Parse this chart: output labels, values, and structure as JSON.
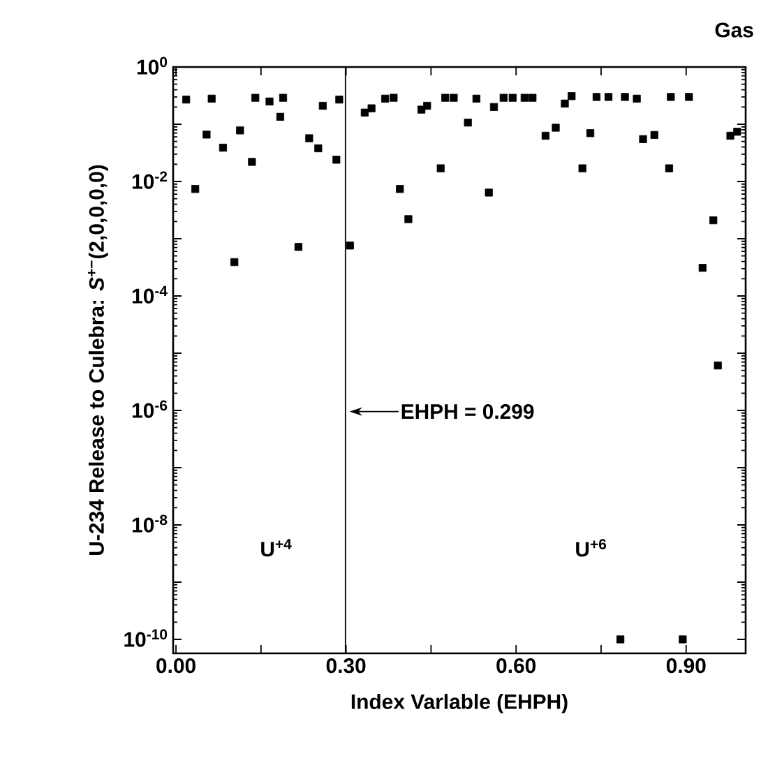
{
  "chart_data": {
    "type": "scatter",
    "title": "Gas",
    "xlabel": "Index Varlable (EHPH)",
    "ylabel": "U-234 Release to Culebra: *S*$^{+−}$(2,0,0,0,0)",
    "color": "#000000",
    "marker": "square",
    "log": "y",
    "xlim": [
      -0.005,
      1.005
    ],
    "ylim": [
      5.7e-11,
      1
    ],
    "xticks": [
      {
        "value": 0,
        "label": "0.00"
      },
      {
        "value": 0.15,
        "label": null
      },
      {
        "value": 0.3,
        "label": "0.30"
      },
      {
        "value": 0.45,
        "label": null
      },
      {
        "value": 0.6,
        "label": "0.60"
      },
      {
        "value": 0.75,
        "label": null
      },
      {
        "value": 0.9,
        "label": "0.90"
      }
    ],
    "yticks": [
      {
        "value": 1e-10,
        "label": "10$^{-10}$"
      },
      {
        "value": 1e-09,
        "label": null
      },
      {
        "value": 1e-08,
        "label": "10$^{-8}$"
      },
      {
        "value": 1e-07,
        "label": null
      },
      {
        "value": 1e-06,
        "label": "10$^{-6}$"
      },
      {
        "value": 1e-05,
        "label": null
      },
      {
        "value": 0.0001,
        "label": "10$^{-4}$"
      },
      {
        "value": 0.001,
        "label": null
      },
      {
        "value": 0.01,
        "label": "10$^{-2}$"
      },
      {
        "value": 0.1,
        "label": null
      },
      {
        "value": 1,
        "label": "10$^{0}$"
      }
    ],
    "x": [
      0.018,
      0.034,
      0.054,
      0.063,
      0.083,
      0.103,
      0.113,
      0.134,
      0.14,
      0.165,
      0.184,
      0.189,
      0.216,
      0.235,
      0.251,
      0.259,
      0.283,
      0.288,
      0.307,
      0.333,
      0.345,
      0.369,
      0.384,
      0.395,
      0.41,
      0.433,
      0.443,
      0.467,
      0.475,
      0.49,
      0.515,
      0.53,
      0.552,
      0.561,
      0.578,
      0.594,
      0.615,
      0.629,
      0.652,
      0.67,
      0.686,
      0.698,
      0.717,
      0.731,
      0.742,
      0.763,
      0.784,
      0.792,
      0.813,
      0.824,
      0.844,
      0.87,
      0.873,
      0.894,
      0.905,
      0.929,
      0.948,
      0.956,
      0.978,
      0.99
    ],
    "values": [
      0.27,
      0.0074,
      0.066,
      0.28,
      0.039,
      0.00039,
      0.078,
      0.022,
      0.29,
      0.25,
      0.135,
      0.29,
      0.00072,
      0.057,
      0.038,
      0.21,
      0.024,
      0.27,
      0.00076,
      0.16,
      0.19,
      0.28,
      0.29,
      0.0074,
      0.0022,
      0.18,
      0.21,
      0.017,
      0.29,
      0.29,
      0.107,
      0.28,
      0.0064,
      0.2,
      0.29,
      0.29,
      0.29,
      0.29,
      0.063,
      0.087,
      0.23,
      0.31,
      0.017,
      0.07,
      0.3,
      0.3,
      1e-10,
      0.3,
      0.28,
      0.055,
      0.065,
      0.017,
      0.3,
      1e-10,
      0.3,
      0.00031,
      0.0021,
      6.1e-06,
      0.063,
      0.074
    ],
    "ref_lines": [
      {
        "axis": "x",
        "value": 0.299,
        "label": "EHPH = 0.299"
      }
    ],
    "annotations": [
      "U$^{+4}$",
      "U$^{+6}$"
    ]
  }
}
